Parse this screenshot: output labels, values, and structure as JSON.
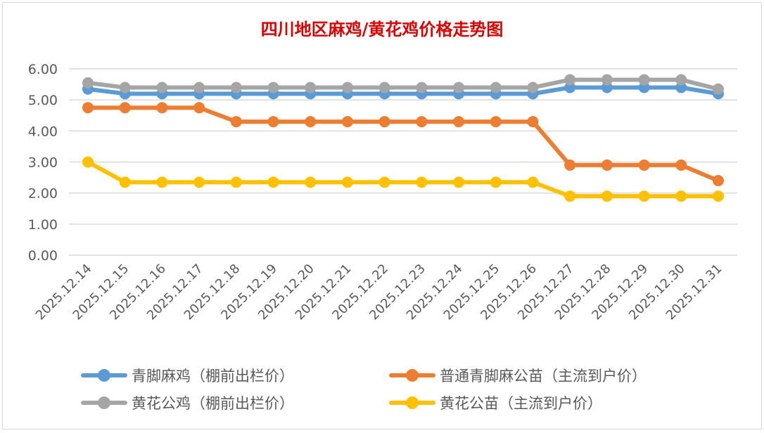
{
  "chart_data": {
    "type": "line",
    "title": "四川地区麻鸡/黄花鸡价格走势图",
    "xlabel": "",
    "ylabel": "",
    "ylim": [
      0,
      6
    ],
    "yticks": [
      "0.00",
      "1.00",
      "2.00",
      "3.00",
      "4.00",
      "5.00",
      "6.00"
    ],
    "grid": true,
    "legend_position": "bottom",
    "categories": [
      "2025.12.14",
      "2025.12.15",
      "2025.12.16",
      "2025.12.17",
      "2025.12.18",
      "2025.12.19",
      "2025.12.20",
      "2025.12.21",
      "2025.12.22",
      "2025.12.23",
      "2025.12.24",
      "2025.12.25",
      "2025.12.26",
      "2025.12.27",
      "2025.12.28",
      "2025.12.29",
      "2025.12.30",
      "2025.12.31"
    ],
    "series": [
      {
        "name": "青脚麻鸡（棚前出栏价）",
        "color": "#5b9bd5",
        "values": [
          5.35,
          5.2,
          5.2,
          5.2,
          5.2,
          5.2,
          5.2,
          5.2,
          5.2,
          5.2,
          5.2,
          5.2,
          5.2,
          5.4,
          5.4,
          5.4,
          5.4,
          5.2
        ]
      },
      {
        "name": "普通青脚麻公苗（主流到户价）",
        "color": "#ed7d31",
        "values": [
          4.75,
          4.75,
          4.75,
          4.75,
          4.3,
          4.3,
          4.3,
          4.3,
          4.3,
          4.3,
          4.3,
          4.3,
          4.3,
          2.9,
          2.9,
          2.9,
          2.9,
          2.4
        ]
      },
      {
        "name": "黄花公鸡（棚前出栏价）",
        "color": "#a5a5a5",
        "values": [
          5.55,
          5.4,
          5.4,
          5.4,
          5.4,
          5.4,
          5.4,
          5.4,
          5.4,
          5.4,
          5.4,
          5.4,
          5.4,
          5.65,
          5.65,
          5.65,
          5.65,
          5.35
        ]
      },
      {
        "name": "黄花公苗（主流到户价）",
        "color": "#ffc000",
        "values": [
          3.0,
          2.35,
          2.35,
          2.35,
          2.35,
          2.35,
          2.35,
          2.35,
          2.35,
          2.35,
          2.35,
          2.35,
          2.35,
          1.9,
          1.9,
          1.9,
          1.9,
          1.9
        ]
      }
    ]
  }
}
